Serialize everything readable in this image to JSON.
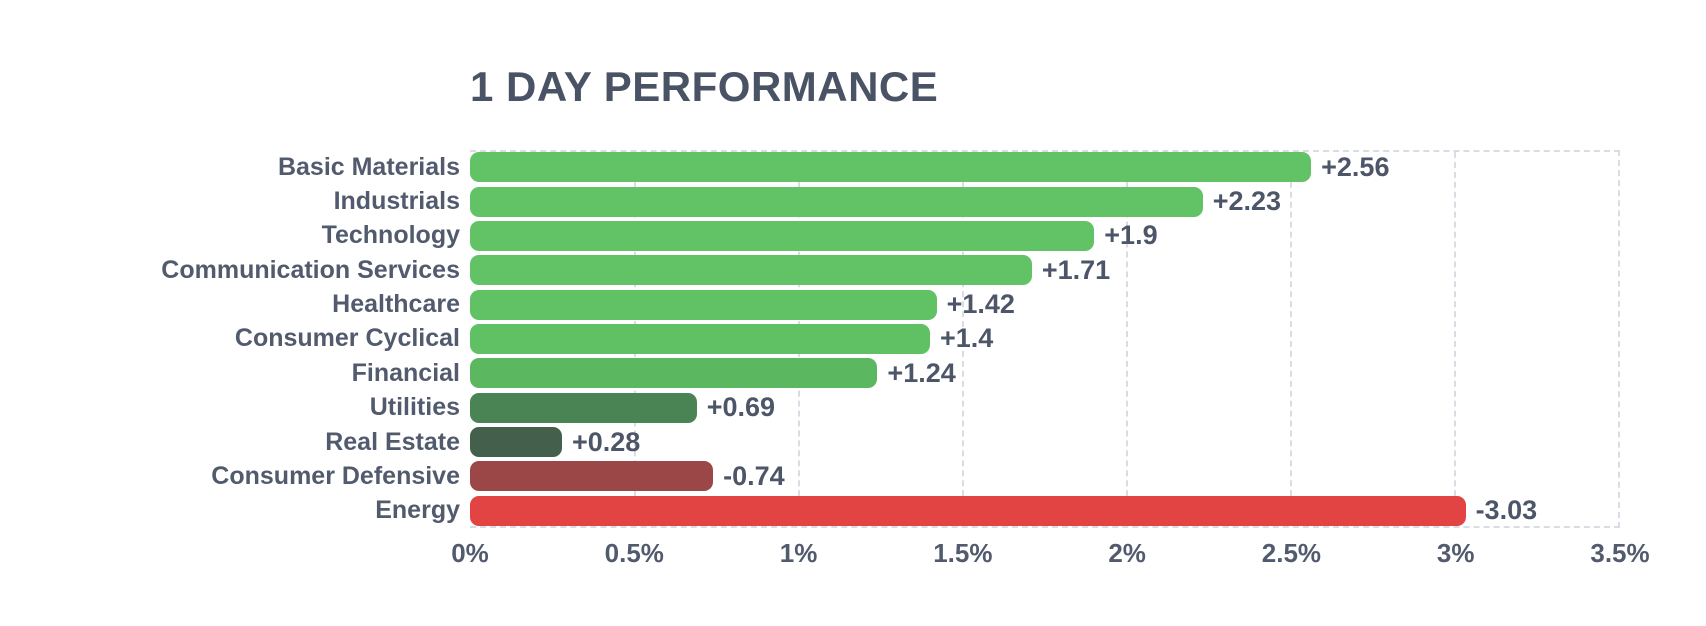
{
  "header": {
    "title": "1 DAY PERFORMANCE"
  },
  "colors": {
    "background": "#ffffff",
    "title_text": "#4a5365",
    "label_text": "#525b6e",
    "value_text": "#4d5668",
    "grid": "#d9dce2",
    "positive_bright_green": "#62c366",
    "positive_dark_green": "#44604d",
    "negative_dark_red": "#9c4747",
    "negative_bright_red": "#e24444"
  },
  "chart_data": {
    "type": "bar",
    "orientation": "horizontal",
    "title": "1 DAY PERFORMANCE",
    "categories": [
      "Basic Materials",
      "Industrials",
      "Technology",
      "Communication Services",
      "Healthcare",
      "Consumer Cyclical",
      "Financial",
      "Utilities",
      "Real Estate",
      "Consumer Defensive",
      "Energy"
    ],
    "values": [
      2.56,
      2.23,
      1.9,
      1.71,
      1.42,
      1.4,
      1.24,
      0.69,
      0.28,
      -0.74,
      -3.03
    ],
    "value_labels": [
      "+2.56",
      "+2.23",
      "+1.9",
      "+1.71",
      "+1.42",
      "+1.4",
      "+1.24",
      "+0.69",
      "+0.28",
      "-0.74",
      "-3.03"
    ],
    "bar_colors": [
      "#62c366",
      "#62c366",
      "#62c366",
      "#62c366",
      "#61c165",
      "#60c064",
      "#5cb860",
      "#4a8455",
      "#44604d",
      "#9c4747",
      "#e24444"
    ],
    "xlabel": "",
    "ylabel": "",
    "xlim": [
      0,
      3.5
    ],
    "x_ticks": [
      {
        "value": 0,
        "label": "0%"
      },
      {
        "value": 0.5,
        "label": "0.5%"
      },
      {
        "value": 1,
        "label": "1%"
      },
      {
        "value": 1.5,
        "label": "1.5%"
      },
      {
        "value": 2,
        "label": "2%"
      },
      {
        "value": 2.5,
        "label": "2.5%"
      },
      {
        "value": 3,
        "label": "3%"
      },
      {
        "value": 3.5,
        "label": "3.5%"
      }
    ],
    "grid": {
      "orientation": "vertical",
      "style": "dashed"
    },
    "legend": null,
    "note": "bars drawn by absolute magnitude; sign shown via color and value label"
  }
}
